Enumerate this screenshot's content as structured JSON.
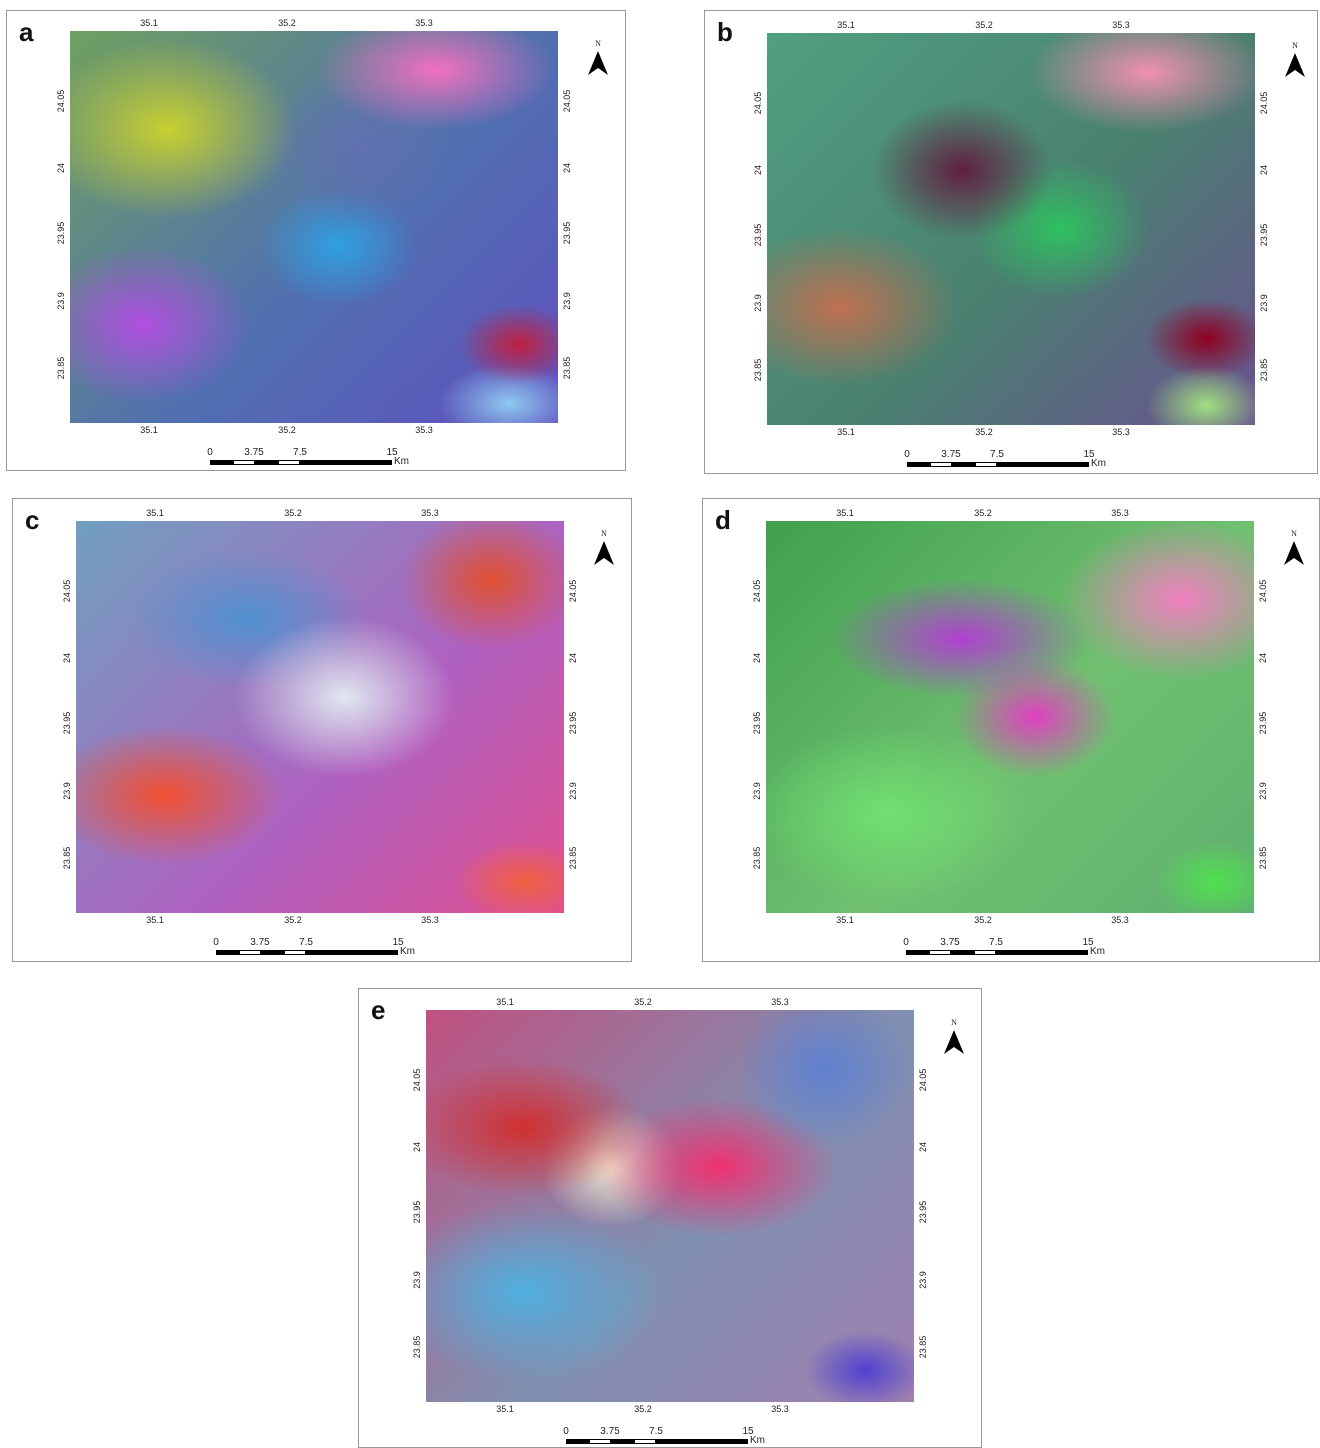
{
  "panels": [
    {
      "label": "a",
      "lon_ticks": [
        "35.1",
        "35.2",
        "35.3"
      ],
      "lat_ticks": [
        "24.05",
        "24",
        "23.95",
        "23.9",
        "23.85"
      ],
      "scale_ticks": [
        "0",
        "3.75",
        "7.5",
        "15"
      ],
      "scale_unit": "Km",
      "north": "N"
    },
    {
      "label": "b",
      "lon_ticks": [
        "35.1",
        "35.2",
        "35.3"
      ],
      "lat_ticks": [
        "24.05",
        "24",
        "23.95",
        "23.9",
        "23.85"
      ],
      "scale_ticks": [
        "0",
        "3.75",
        "7.5",
        "15"
      ],
      "scale_unit": "Km",
      "north": "N"
    },
    {
      "label": "c",
      "lon_ticks": [
        "35.1",
        "35.2",
        "35.3"
      ],
      "lat_ticks": [
        "24.05",
        "24",
        "23.95",
        "23.9",
        "23.85"
      ],
      "scale_ticks": [
        "0",
        "3.75",
        "7.5",
        "15"
      ],
      "scale_unit": "Km",
      "north": "N"
    },
    {
      "label": "d",
      "lon_ticks": [
        "35.1",
        "35.2",
        "35.3"
      ],
      "lat_ticks": [
        "24.05",
        "24",
        "23.95",
        "23.9",
        "23.85"
      ],
      "scale_ticks": [
        "0",
        "3.75",
        "7.5",
        "15"
      ],
      "scale_unit": "Km",
      "north": "N"
    },
    {
      "label": "e",
      "lon_ticks": [
        "35.1",
        "35.2",
        "35.3"
      ],
      "lat_ticks": [
        "24.05",
        "24",
        "23.95",
        "23.9",
        "23.85"
      ],
      "scale_ticks": [
        "0",
        "3.75",
        "7.5",
        "15"
      ],
      "scale_unit": "Km",
      "north": "N"
    }
  ]
}
